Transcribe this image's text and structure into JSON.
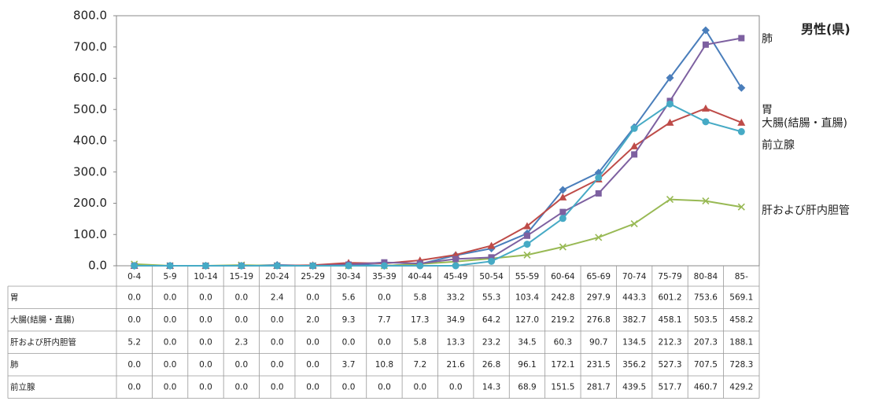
{
  "chart_data": {
    "type": "line",
    "title": "男性(県)",
    "categories": [
      "0-4",
      "5-9",
      "10-14",
      "15-19",
      "20-24",
      "25-29",
      "30-34",
      "35-39",
      "40-44",
      "45-49",
      "50-54",
      "55-59",
      "60-64",
      "65-69",
      "70-74",
      "75-79",
      "80-84",
      "85-"
    ],
    "ylim": [
      0,
      800
    ],
    "yticks": [
      {
        "value": 0,
        "label": "0.0"
      },
      {
        "value": 100,
        "label": "100.0"
      },
      {
        "value": 200,
        "label": "200.0"
      },
      {
        "value": 300,
        "label": "300.0"
      },
      {
        "value": 400,
        "label": "400.0"
      },
      {
        "value": 500,
        "label": "500.0"
      },
      {
        "value": 600,
        "label": "600.0"
      },
      {
        "value": 700,
        "label": "700.0"
      },
      {
        "value": 800,
        "label": "800.0"
      }
    ],
    "series": [
      {
        "name": "胃",
        "color": "#4a7ebb",
        "marker": "diamond",
        "values": [
          0,
          0,
          0,
          0,
          2.4,
          0,
          5.6,
          0,
          5.8,
          33.2,
          55.3,
          103.4,
          242.8,
          297.9,
          443.3,
          601.2,
          753.6,
          569.1
        ],
        "value_labels": [
          "0.0",
          "0.0",
          "0.0",
          "0.0",
          "2.4",
          "0.0",
          "5.6",
          "0.0",
          "5.8",
          "33.2",
          "55.3",
          "103.4",
          "242.8",
          "297.9",
          "443.3",
          "601.2",
          "753.6",
          "569.1"
        ]
      },
      {
        "name": "大腸(結腸・直腸)",
        "color": "#be4b48",
        "marker": "triangle",
        "values": [
          0,
          0,
          0,
          0,
          0,
          2,
          9.3,
          7.7,
          17.3,
          34.9,
          64.2,
          127,
          219.2,
          276.8,
          382.7,
          458.1,
          503.5,
          458.2
        ],
        "value_labels": [
          "0.0",
          "0.0",
          "0.0",
          "0.0",
          "0.0",
          "2.0",
          "9.3",
          "7.7",
          "17.3",
          "34.9",
          "64.2",
          "127.0",
          "219.2",
          "276.8",
          "382.7",
          "458.1",
          "503.5",
          "458.2"
        ]
      },
      {
        "name": "肝および肝内胆管",
        "color": "#98b954",
        "marker": "x",
        "values": [
          5.2,
          0,
          0,
          2.3,
          0,
          0,
          0,
          0,
          5.8,
          13.3,
          23.2,
          34.5,
          60.3,
          90.7,
          134.5,
          212.3,
          207.3,
          188.1
        ],
        "value_labels": [
          "5.2",
          "0.0",
          "0.0",
          "2.3",
          "0.0",
          "0.0",
          "0.0",
          "0.0",
          "5.8",
          "13.3",
          "23.2",
          "34.5",
          "60.3",
          "90.7",
          "134.5",
          "212.3",
          "207.3",
          "188.1"
        ]
      },
      {
        "name": "肺",
        "color": "#7d60a0",
        "marker": "square",
        "values": [
          0,
          0,
          0,
          0,
          0,
          0,
          3.7,
          10.8,
          7.2,
          21.6,
          26.8,
          96.1,
          172.1,
          231.5,
          356.2,
          527.3,
          707.5,
          728.3
        ],
        "value_labels": [
          "0.0",
          "0.0",
          "0.0",
          "0.0",
          "0.0",
          "0.0",
          "3.7",
          "10.8",
          "7.2",
          "21.6",
          "26.8",
          "96.1",
          "172.1",
          "231.5",
          "356.2",
          "527.3",
          "707.5",
          "728.3"
        ]
      },
      {
        "name": "前立腺",
        "color": "#46aac5",
        "marker": "circle",
        "values": [
          0,
          0,
          0,
          0,
          0,
          0,
          0,
          0,
          0,
          0,
          14.3,
          68.9,
          151.5,
          281.7,
          439.5,
          517.7,
          460.7,
          429.2
        ],
        "value_labels": [
          "0.0",
          "0.0",
          "0.0",
          "0.0",
          "0.0",
          "0.0",
          "0.0",
          "0.0",
          "0.0",
          "0.0",
          "14.3",
          "68.9",
          "151.5",
          "281.7",
          "439.5",
          "517.7",
          "460.7",
          "429.2"
        ]
      }
    ]
  }
}
